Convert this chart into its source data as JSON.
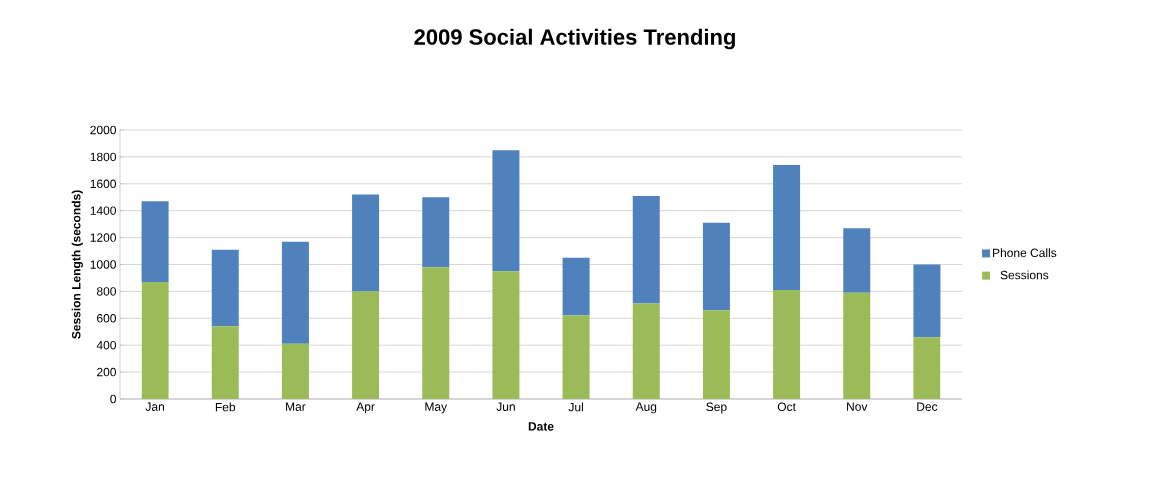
{
  "chart_data": {
    "type": "bar",
    "title": "2009 Social Activities Trending",
    "xlabel": "Date",
    "ylabel": "Session Length (seconds)",
    "categories": [
      "Jan",
      "Feb",
      "Mar",
      "Apr",
      "May",
      "Jun",
      "Jul",
      "Aug",
      "Sep",
      "Oct",
      "Nov",
      "Dec"
    ],
    "stacked": true,
    "series": [
      {
        "name": "Sessions",
        "color": "#9bbb59",
        "values": [
          870,
          540,
          410,
          800,
          980,
          950,
          620,
          710,
          660,
          810,
          790,
          460
        ]
      },
      {
        "name": "Phone Calls",
        "color": "#4f81bd",
        "values": [
          600,
          570,
          760,
          720,
          520,
          900,
          430,
          800,
          650,
          930,
          480,
          540
        ]
      }
    ],
    "ylim": [
      0,
      2000
    ],
    "yticks": [
      0,
      200,
      400,
      600,
      800,
      1000,
      1200,
      1400,
      1600,
      1800,
      2000
    ],
    "grid": "y",
    "legend": "right"
  }
}
